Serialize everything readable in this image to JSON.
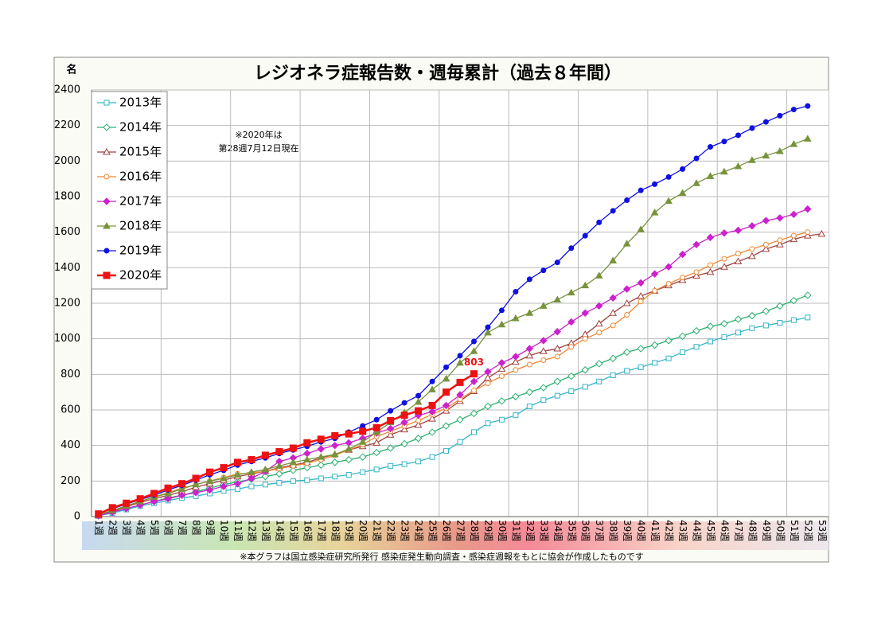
{
  "chart_data": {
    "type": "line",
    "title": "レジオネラ症報告数・週毎累計（過去８年間）",
    "y_label": "名",
    "annotation": [
      "※2020年は",
      "第28週7月12日現在"
    ],
    "footnote": "※本グラフは国立感染症研究所発行 感染症発生動向調査・感染症週報をもとに協会が作成したものです",
    "categories": [
      "1週",
      "2週",
      "3週",
      "4週",
      "5週",
      "6週",
      "7週",
      "8週",
      "9週",
      "10週",
      "11週",
      "12週",
      "13週",
      "14週",
      "15週",
      "16週",
      "17週",
      "18週",
      "19週",
      "20週",
      "21週",
      "22週",
      "23週",
      "24週",
      "25週",
      "26週",
      "27週",
      "28週",
      "29週",
      "30週",
      "31週",
      "32週",
      "33週",
      "34週",
      "35週",
      "36週",
      "37週",
      "38週",
      "39週",
      "40週",
      "41週",
      "42週",
      "43週",
      "44週",
      "45週",
      "46週",
      "47週",
      "48週",
      "49週",
      "50週",
      "51週",
      "52週",
      "53週"
    ],
    "ylim": [
      0,
      2400
    ],
    "yticks": [
      0,
      200,
      400,
      600,
      800,
      1000,
      1200,
      1400,
      1600,
      1800,
      2000,
      2200,
      2400
    ],
    "grid": true,
    "legend": "upper left",
    "series": [
      {
        "name": "2013年",
        "color": "#33b5c8",
        "marker": "square-open",
        "values": [
          5,
          20,
          40,
          60,
          75,
          90,
          105,
          115,
          130,
          145,
          155,
          170,
          180,
          190,
          200,
          205,
          215,
          225,
          235,
          250,
          265,
          285,
          295,
          310,
          335,
          370,
          420,
          475,
          525,
          545,
          570,
          620,
          655,
          680,
          705,
          730,
          760,
          795,
          820,
          840,
          865,
          890,
          925,
          955,
          985,
          1010,
          1035,
          1060,
          1075,
          1090,
          1105,
          1120,
          null
        ]
      },
      {
        "name": "2014年",
        "color": "#2ab06f",
        "marker": "diamond-open",
        "values": [
          5,
          25,
          45,
          65,
          85,
          105,
          120,
          140,
          160,
          180,
          195,
          210,
          225,
          240,
          260,
          275,
          290,
          305,
          320,
          335,
          360,
          385,
          410,
          440,
          475,
          510,
          545,
          580,
          620,
          650,
          675,
          700,
          725,
          760,
          790,
          825,
          860,
          890,
          925,
          945,
          965,
          990,
          1015,
          1045,
          1070,
          1085,
          1110,
          1130,
          1155,
          1185,
          1215,
          1245,
          null
        ]
      },
      {
        "name": "2015年",
        "color": "#a0413e",
        "marker": "triangle-open",
        "values": [
          5,
          30,
          55,
          80,
          100,
          120,
          140,
          165,
          185,
          205,
          225,
          240,
          255,
          275,
          290,
          305,
          330,
          350,
          375,
          395,
          415,
          460,
          490,
          515,
          550,
          595,
          650,
          705,
          780,
          830,
          870,
          905,
          930,
          945,
          975,
          1025,
          1085,
          1145,
          1200,
          1240,
          1270,
          1300,
          1330,
          1355,
          1375,
          1405,
          1435,
          1465,
          1505,
          1530,
          1560,
          1580,
          1590
        ]
      },
      {
        "name": "2016年",
        "color": "#ee8833",
        "marker": "circle-open",
        "values": [
          10,
          35,
          60,
          85,
          110,
          135,
          160,
          180,
          200,
          220,
          240,
          245,
          255,
          270,
          285,
          300,
          320,
          345,
          375,
          405,
          450,
          480,
          510,
          540,
          575,
          610,
          660,
          710,
          750,
          790,
          825,
          855,
          880,
          900,
          955,
          1000,
          1035,
          1075,
          1135,
          1210,
          1270,
          1310,
          1345,
          1375,
          1415,
          1450,
          1480,
          1505,
          1530,
          1555,
          1580,
          1600,
          null
        ]
      },
      {
        "name": "2017年",
        "color": "#cc22cc",
        "marker": "diamond",
        "values": [
          5,
          25,
          45,
          65,
          85,
          100,
          120,
          135,
          150,
          170,
          185,
          215,
          255,
          310,
          330,
          355,
          380,
          400,
          415,
          440,
          470,
          495,
          530,
          570,
          590,
          625,
          685,
          760,
          815,
          865,
          900,
          945,
          990,
          1040,
          1095,
          1145,
          1185,
          1230,
          1280,
          1315,
          1365,
          1405,
          1475,
          1530,
          1570,
          1595,
          1610,
          1635,
          1665,
          1680,
          1700,
          1730,
          null
        ]
      },
      {
        "name": "2018年",
        "color": "#77933c",
        "marker": "triangle",
        "values": [
          10,
          35,
          60,
          85,
          110,
          130,
          155,
          180,
          200,
          215,
          235,
          250,
          265,
          285,
          305,
          320,
          335,
          350,
          380,
          420,
          475,
          530,
          585,
          645,
          715,
          775,
          865,
          930,
          1035,
          1080,
          1115,
          1145,
          1185,
          1220,
          1260,
          1300,
          1355,
          1440,
          1535,
          1615,
          1710,
          1775,
          1820,
          1875,
          1915,
          1940,
          1970,
          2005,
          2030,
          2055,
          2095,
          2125,
          null
        ]
      },
      {
        "name": "2019年",
        "color": "#1010e0",
        "marker": "circle",
        "values": [
          15,
          45,
          70,
          95,
          120,
          150,
          175,
          205,
          235,
          260,
          290,
          310,
          330,
          355,
          375,
          395,
          420,
          440,
          475,
          510,
          545,
          595,
          640,
          680,
          760,
          840,
          905,
          985,
          1065,
          1160,
          1265,
          1335,
          1385,
          1430,
          1510,
          1580,
          1655,
          1720,
          1780,
          1835,
          1870,
          1910,
          1955,
          2015,
          2080,
          2110,
          2145,
          2185,
          2220,
          2255,
          2290,
          2310,
          null
        ]
      },
      {
        "name": "2020年",
        "color": "#ee1111",
        "marker": "square",
        "values": [
          15,
          50,
          75,
          100,
          130,
          160,
          185,
          215,
          250,
          275,
          305,
          320,
          345,
          365,
          385,
          415,
          435,
          455,
          465,
          480,
          500,
          540,
          570,
          595,
          625,
          700,
          755,
          803,
          null,
          null,
          null,
          null,
          null,
          null,
          null,
          null,
          null,
          null,
          null,
          null,
          null,
          null,
          null,
          null,
          null,
          null,
          null,
          null,
          null,
          null,
          null,
          null,
          null
        ],
        "value_labels": [
          null,
          null,
          null,
          null,
          null,
          null,
          null,
          null,
          null,
          null,
          null,
          null,
          null,
          null,
          null,
          null,
          null,
          null,
          null,
          null,
          null,
          null,
          null,
          null,
          null,
          null,
          null,
          "803",
          null,
          null,
          null,
          null,
          null,
          null,
          null,
          null,
          null,
          null,
          null,
          null,
          null,
          null,
          null,
          null,
          null,
          null,
          null,
          null,
          null,
          null,
          null,
          null,
          null
        ]
      }
    ]
  }
}
